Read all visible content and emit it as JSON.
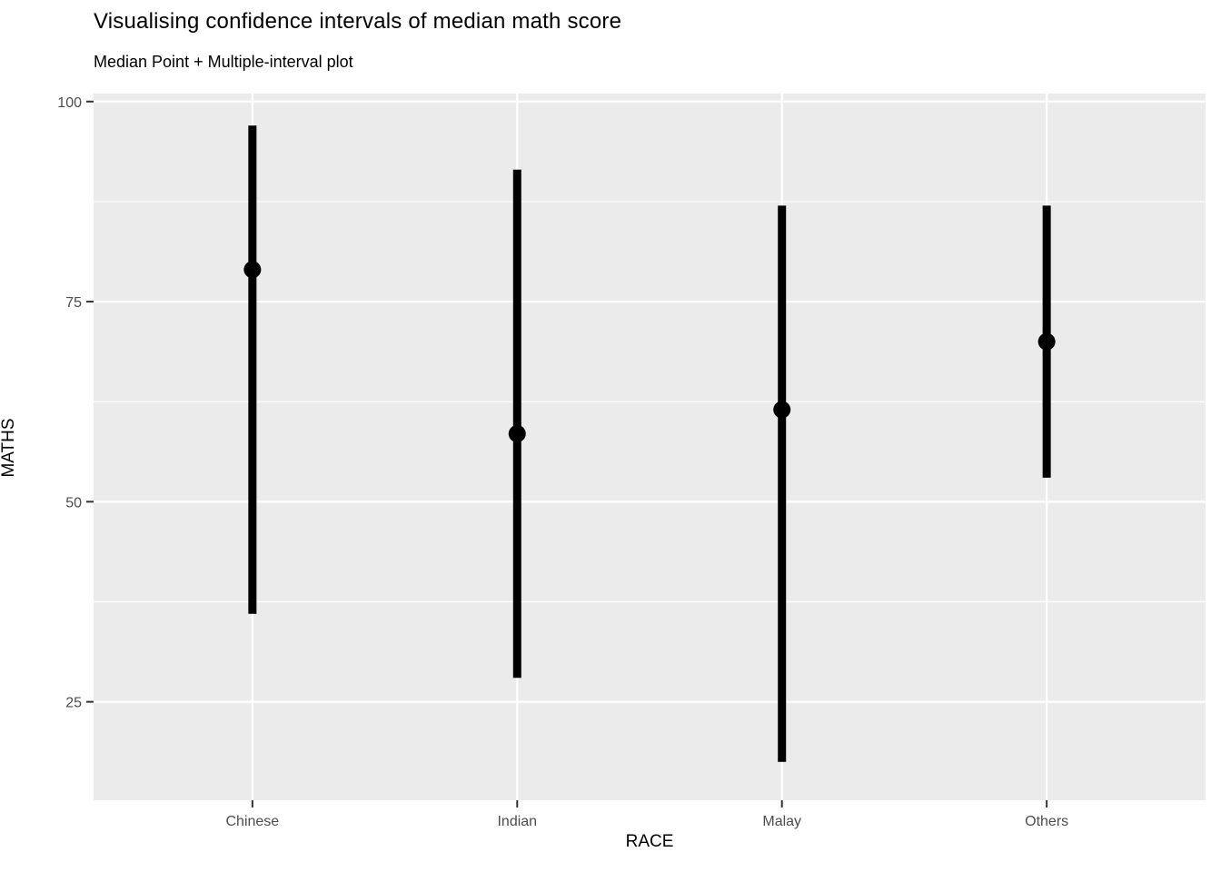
{
  "chart_data": {
    "type": "scatter",
    "subtype": "pointrange",
    "title": "Visualising confidence intervals of median math score",
    "subtitle": "Median Point + Multiple-interval plot",
    "xlabel": "RACE",
    "ylabel": "MATHS",
    "categories": [
      "Chinese",
      "Indian",
      "Malay",
      "Others"
    ],
    "points": [
      {
        "category": "Chinese",
        "median": 79,
        "lower": 36,
        "upper": 97
      },
      {
        "category": "Indian",
        "median": 58.5,
        "lower": 28,
        "upper": 91.5
      },
      {
        "category": "Malay",
        "median": 61.5,
        "lower": 17.5,
        "upper": 87
      },
      {
        "category": "Others",
        "median": 70,
        "lower": 53,
        "upper": 87
      }
    ],
    "y_ticks": [
      25,
      50,
      75,
      100
    ],
    "y_minor_ticks": [
      37.5,
      62.5,
      87.5
    ],
    "ylim": [
      12.7,
      101
    ],
    "grid": true,
    "legend": false,
    "colors": {
      "panel_bg": "#EBEBEB",
      "grid": "#FFFFFF",
      "geom": "#000000",
      "tick_label": "#4D4D4D",
      "tick_mark": "#333333"
    }
  }
}
